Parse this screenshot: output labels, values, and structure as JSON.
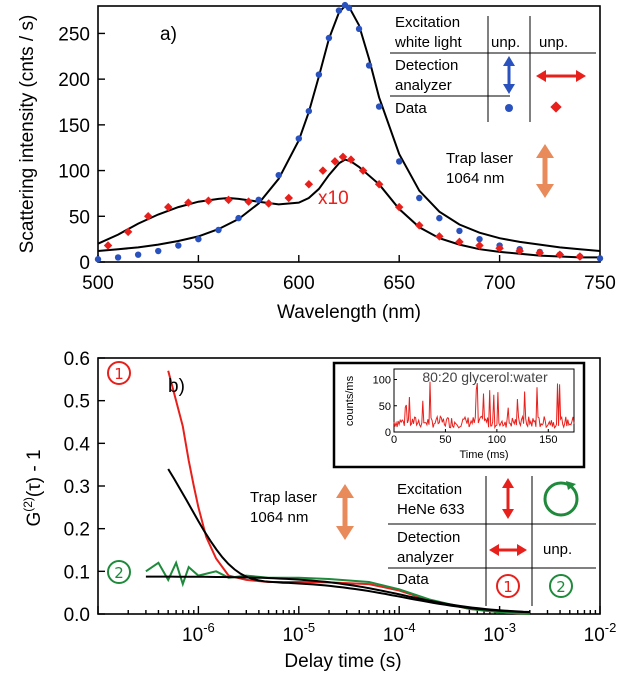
{
  "chart_data": [
    {
      "type": "scatter",
      "panel_label": "a)",
      "xlabel": "Wavelength (nm)",
      "ylabel": "Scattering intensity (cnts / s)",
      "xlim": [
        500,
        750
      ],
      "ylim": [
        0,
        280
      ],
      "xticks": [
        500,
        550,
        600,
        650,
        700,
        750
      ],
      "yticks": [
        0,
        50,
        100,
        150,
        200,
        250
      ],
      "annotation": "x10",
      "series": [
        {
          "name": "unp. / vertical analyzer (blue dots)",
          "color": "#2a52be",
          "marker": "circle",
          "x": [
            500,
            510,
            520,
            530,
            540,
            550,
            560,
            570,
            580,
            590,
            600,
            605,
            610,
            615,
            620,
            623,
            625,
            630,
            635,
            640,
            650,
            660,
            670,
            680,
            690,
            700,
            710,
            720,
            730,
            740,
            750
          ],
          "y": [
            3,
            5,
            8,
            12,
            18,
            25,
            35,
            48,
            68,
            95,
            135,
            165,
            205,
            245,
            275,
            281,
            278,
            255,
            215,
            170,
            110,
            70,
            48,
            34,
            25,
            18,
            14,
            11,
            8,
            6,
            4
          ]
        },
        {
          "name": "fit (blue)",
          "color": "#000000",
          "marker": "line",
          "x": [
            500,
            510,
            520,
            530,
            540,
            550,
            560,
            570,
            580,
            590,
            600,
            605,
            610,
            615,
            620,
            623,
            625,
            630,
            635,
            640,
            650,
            660,
            670,
            680,
            690,
            700,
            710,
            720,
            730,
            740,
            750
          ],
          "y": [
            12,
            14,
            16,
            19,
            23,
            28,
            36,
            47,
            64,
            91,
            133,
            164,
            203,
            244,
            273,
            280,
            279,
            259,
            222,
            180,
            118,
            78,
            55,
            41,
            32,
            26,
            22,
            19,
            16,
            14,
            12
          ]
        },
        {
          "name": "unp. / horizontal analyzer x10 (red diamonds)",
          "color": "#e8201c",
          "marker": "diamond",
          "x": [
            505,
            515,
            525,
            535,
            545,
            555,
            565,
            575,
            585,
            595,
            605,
            612,
            618,
            622,
            626,
            632,
            640,
            650,
            660,
            670,
            680,
            690,
            700,
            710,
            720,
            730,
            740
          ],
          "y": [
            18,
            33,
            50,
            60,
            65,
            67,
            68,
            66,
            64,
            70,
            85,
            100,
            110,
            115,
            112,
            100,
            85,
            60,
            40,
            28,
            22,
            18,
            15,
            12,
            10,
            8,
            6
          ]
        },
        {
          "name": "fit (red)",
          "color": "#000000",
          "marker": "line",
          "x": [
            500,
            510,
            520,
            530,
            540,
            550,
            560,
            565,
            570,
            580,
            590,
            600,
            605,
            610,
            615,
            620,
            623,
            626,
            630,
            640,
            650,
            660,
            670,
            680,
            690,
            700,
            720,
            740,
            750
          ],
          "y": [
            20,
            30,
            42,
            52,
            60,
            66,
            69,
            70,
            69,
            66,
            63,
            65,
            70,
            80,
            95,
            108,
            112,
            110,
            104,
            85,
            58,
            38,
            26,
            19,
            14,
            11,
            7,
            5,
            5
          ]
        }
      ],
      "legend_table": {
        "row_excitation_label": "Excitation\nwhite light",
        "col1_excitation": "unp.",
        "col2_excitation": "unp.",
        "row_detection_label": "Detection\nanalyzer",
        "row_data_label": "Data"
      },
      "trap_laser_label": "Trap laser\n1064 nm"
    },
    {
      "type": "line",
      "panel_label": "b)",
      "xlabel": "Delay time (s)",
      "ylabel": "G(2)(τ) - 1",
      "xscale": "log",
      "xlim": [
        1e-07,
        0.01
      ],
      "ylim": [
        0,
        0.6
      ],
      "yticks": [
        0.0,
        0.1,
        0.2,
        0.3,
        0.4,
        0.5,
        0.6
      ],
      "series": [
        {
          "name": "①",
          "color": "#e8201c",
          "x": [
            5e-07,
            6e-07,
            7e-07,
            8e-07,
            9e-07,
            1e-06,
            1.2e-06,
            1.5e-06,
            2e-06,
            3e-06,
            5e-06,
            1e-05,
            2e-05,
            5e-05,
            0.0001,
            0.0002,
            0.0005,
            0.001,
            0.002
          ],
          "y": [
            0.57,
            0.5,
            0.44,
            0.36,
            0.3,
            0.25,
            0.18,
            0.13,
            0.09,
            0.08,
            0.075,
            0.075,
            0.074,
            0.07,
            0.055,
            0.032,
            0.012,
            0.004,
            0.0
          ]
        },
        {
          "name": "②",
          "color": "#1f8a3b",
          "x": [
            3e-07,
            4e-07,
            5e-07,
            6e-07,
            7e-07,
            8e-07,
            1e-06,
            1.5e-06,
            2e-06,
            3e-06,
            5e-06,
            1e-05,
            2e-05,
            5e-05,
            0.0001,
            0.0002,
            0.0005,
            0.001,
            0.002
          ],
          "y": [
            0.1,
            0.12,
            0.08,
            0.12,
            0.07,
            0.11,
            0.09,
            0.1,
            0.085,
            0.09,
            0.085,
            0.085,
            0.082,
            0.075,
            0.058,
            0.034,
            0.012,
            0.004,
            0.0
          ]
        }
      ],
      "inset": {
        "title": "80:20 glycerol:water",
        "xlabel": "Time (ms)",
        "ylabel": "counts/ms",
        "xlim": [
          0,
          175
        ],
        "ylim": [
          0,
          120
        ],
        "xticks": [
          0,
          50,
          100,
          150
        ],
        "yticks": [
          0,
          50,
          100
        ]
      },
      "legend_table": {
        "row_excitation_label": "Excitation\nHeNe 633",
        "row_detection_label": "Detection\nanalyzer",
        "col2_detection": "unp.",
        "row_data_label": "Data",
        "data_col1": "①",
        "data_col2": "②"
      },
      "trap_laser_label": "Trap laser\n1064 nm"
    }
  ]
}
